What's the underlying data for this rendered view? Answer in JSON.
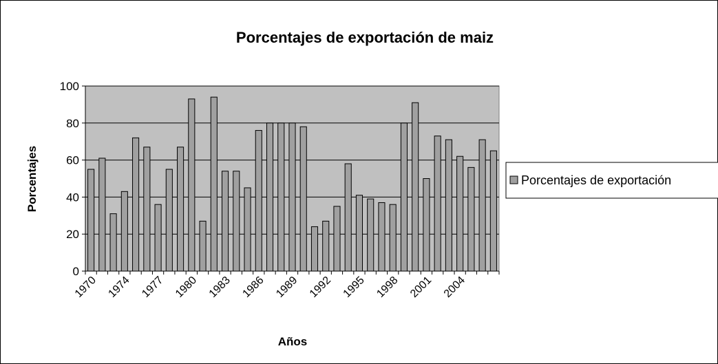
{
  "chart_data": {
    "type": "bar",
    "title": "Porcentajes de exportación de maiz",
    "x_label": "Años",
    "y_label": "Porcentajes",
    "categories": [
      "1970",
      null,
      null,
      "1974",
      null,
      null,
      "1977",
      null,
      null,
      "1980",
      null,
      null,
      "1983",
      null,
      null,
      "1986",
      null,
      null,
      "1989",
      null,
      null,
      "1992",
      null,
      null,
      "1995",
      null,
      null,
      "1998",
      null,
      null,
      "2001",
      null,
      null,
      "2004",
      null,
      null,
      null
    ],
    "series": [
      {
        "name": "Porcentajes de exportación",
        "color": "#a0a0a0",
        "values": [
          55,
          61,
          31,
          43,
          72,
          67,
          36,
          55,
          67,
          93,
          27,
          94,
          54,
          54,
          45,
          76,
          80,
          80,
          80,
          78,
          24,
          27,
          35,
          58,
          41,
          39,
          37,
          36,
          80,
          91,
          50,
          73,
          71,
          62,
          56,
          71,
          65
        ]
      }
    ],
    "ylim": [
      0,
      100
    ],
    "yticks": [
      0,
      20,
      40,
      60,
      80,
      100
    ],
    "grid": true,
    "legend": "right"
  }
}
